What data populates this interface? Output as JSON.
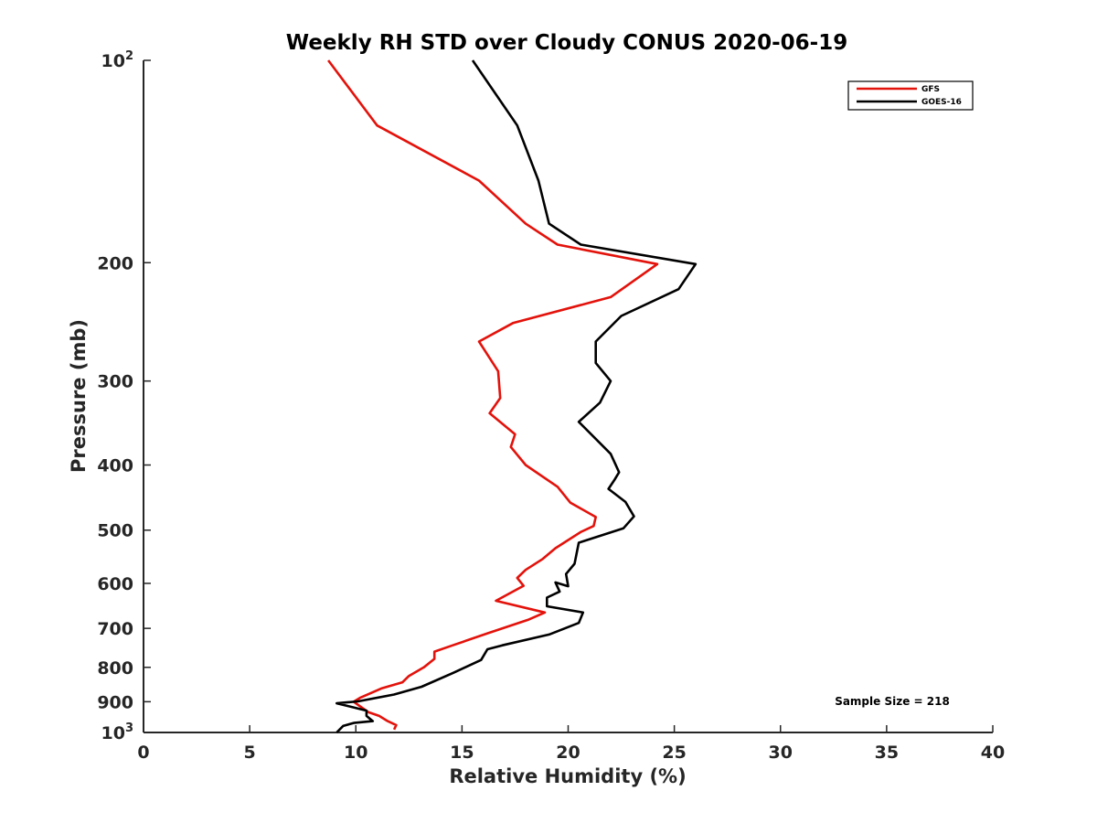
{
  "chart_data": {
    "type": "line",
    "title": "Weekly RH STD over Cloudy CONUS 2020-06-19",
    "xlabel": "Relative Humidity (%)",
    "ylabel": "Pressure (mb)",
    "xlim": [
      0,
      40
    ],
    "ylim": [
      100,
      1000
    ],
    "yscale": "log",
    "yreversed": true,
    "xticks": [
      0,
      5,
      10,
      15,
      20,
      25,
      30,
      35,
      40
    ],
    "yticks": [
      {
        "value": 100,
        "base": "10",
        "exp": "2"
      },
      {
        "value": 200,
        "label": "200"
      },
      {
        "value": 300,
        "label": "300"
      },
      {
        "value": 400,
        "label": "400"
      },
      {
        "value": 500,
        "label": "500"
      },
      {
        "value": 600,
        "label": "600"
      },
      {
        "value": 700,
        "label": "700"
      },
      {
        "value": 800,
        "label": "800"
      },
      {
        "value": 900,
        "label": "900"
      },
      {
        "value": 1000,
        "base": "10",
        "exp": "3"
      }
    ],
    "grid": false,
    "legend_position": "top-right",
    "annotation": "Sample Size = 218",
    "series": [
      {
        "name": "GFS",
        "color": "#e3120b",
        "points": [
          [
            8.7,
            100
          ],
          [
            11.0,
            125
          ],
          [
            15.8,
            151
          ],
          [
            18.0,
            175
          ],
          [
            19.5,
            188
          ],
          [
            24.2,
            201
          ],
          [
            22.0,
            225
          ],
          [
            17.4,
            246
          ],
          [
            15.8,
            262
          ],
          [
            16.7,
            290
          ],
          [
            16.8,
            318
          ],
          [
            16.3,
            335
          ],
          [
            17.5,
            360
          ],
          [
            17.3,
            376
          ],
          [
            18.0,
            400
          ],
          [
            19.5,
            431
          ],
          [
            20.1,
            455
          ],
          [
            21.3,
            478
          ],
          [
            21.2,
            493
          ],
          [
            20.6,
            503
          ],
          [
            19.4,
            532
          ],
          [
            18.8,
            552
          ],
          [
            18.0,
            573
          ],
          [
            17.6,
            589
          ],
          [
            17.9,
            605
          ],
          [
            16.6,
            637
          ],
          [
            18.9,
            663
          ],
          [
            18.1,
            680
          ],
          [
            16.2,
            712
          ],
          [
            14.5,
            743
          ],
          [
            13.7,
            758
          ],
          [
            13.7,
            777
          ],
          [
            13.2,
            800
          ],
          [
            12.5,
            824
          ],
          [
            12.2,
            842
          ],
          [
            11.2,
            860
          ],
          [
            10.2,
            888
          ],
          [
            9.9,
            900
          ],
          [
            10.6,
            933
          ],
          [
            11.1,
            945
          ],
          [
            11.5,
            962
          ],
          [
            11.9,
            975
          ],
          [
            11.8,
            990
          ]
        ]
      },
      {
        "name": "GOES-16",
        "color": "#000000",
        "points": [
          [
            15.5,
            100
          ],
          [
            17.6,
            125
          ],
          [
            18.6,
            151
          ],
          [
            19.1,
            175
          ],
          [
            20.6,
            188
          ],
          [
            26.0,
            201
          ],
          [
            25.2,
            219
          ],
          [
            22.5,
            240
          ],
          [
            21.3,
            262
          ],
          [
            21.3,
            282
          ],
          [
            22.0,
            300
          ],
          [
            21.5,
            323
          ],
          [
            20.5,
            345
          ],
          [
            22.0,
            385
          ],
          [
            22.4,
            410
          ],
          [
            22.2,
            420
          ],
          [
            21.9,
            434
          ],
          [
            22.7,
            454
          ],
          [
            23.1,
            477
          ],
          [
            22.6,
            497
          ],
          [
            20.5,
            522
          ],
          [
            20.3,
            561
          ],
          [
            19.9,
            581
          ],
          [
            20.0,
            606
          ],
          [
            19.4,
            598
          ],
          [
            19.6,
            617
          ],
          [
            19.0,
            630
          ],
          [
            19.0,
            649
          ],
          [
            20.7,
            663
          ],
          [
            20.5,
            687
          ],
          [
            19.1,
            715
          ],
          [
            16.9,
            742
          ],
          [
            16.2,
            752
          ],
          [
            15.9,
            780
          ],
          [
            14.6,
            815
          ],
          [
            13.1,
            855
          ],
          [
            11.8,
            878
          ],
          [
            10.1,
            899
          ],
          [
            9.1,
            905
          ],
          [
            10.5,
            928
          ],
          [
            10.5,
            945
          ],
          [
            10.8,
            962
          ],
          [
            9.9,
            968
          ],
          [
            9.4,
            978
          ],
          [
            9.1,
            1000
          ]
        ]
      }
    ]
  }
}
